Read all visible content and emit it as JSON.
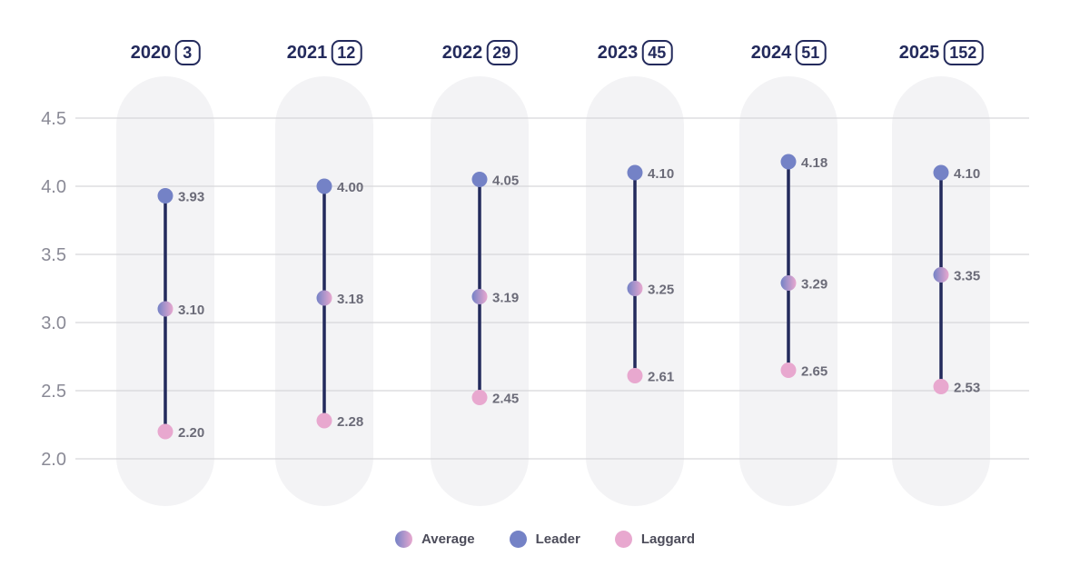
{
  "chart_data": {
    "type": "dumbbell",
    "ylim": [
      2.0,
      4.5
    ],
    "yticks": [
      "2.0",
      "2.5",
      "3.0",
      "3.5",
      "4.0",
      "4.5"
    ],
    "grid": true,
    "legend_position": "bottom-center",
    "categories": [
      {
        "year": "2020",
        "count": "3"
      },
      {
        "year": "2021",
        "count": "12"
      },
      {
        "year": "2022",
        "count": "29"
      },
      {
        "year": "2023",
        "count": "45"
      },
      {
        "year": "2024",
        "count": "51"
      },
      {
        "year": "2025",
        "count": "152"
      }
    ],
    "series": [
      {
        "name": "Leader",
        "color": "#7482c6",
        "values": [
          3.93,
          4.0,
          4.05,
          4.1,
          4.18,
          4.1
        ],
        "labels": [
          "3.93",
          "4.00",
          "4.05",
          "4.10",
          "4.18",
          "4.10"
        ]
      },
      {
        "name": "Average",
        "color": "#a88ccb",
        "values": [
          3.1,
          3.18,
          3.19,
          3.25,
          3.29,
          3.35
        ],
        "labels": [
          "3.10",
          "3.18",
          "3.19",
          "3.25",
          "3.29",
          "3.35"
        ]
      },
      {
        "name": "Laggard",
        "color": "#e8a8cf",
        "values": [
          2.2,
          2.28,
          2.45,
          2.61,
          2.65,
          2.53
        ],
        "labels": [
          "2.20",
          "2.28",
          "2.45",
          "2.61",
          "2.65",
          "2.53"
        ]
      }
    ],
    "legend": [
      "Average",
      "Leader",
      "Laggard"
    ]
  },
  "colors": {
    "line": "#232a5c",
    "grid": "#d6d6da",
    "column_bg": "#f3f3f5",
    "axis_text": "#8a8a96",
    "value_text": "#6b6b78",
    "average_gradient": [
      "#7482c6",
      "#e8a8cf"
    ]
  }
}
